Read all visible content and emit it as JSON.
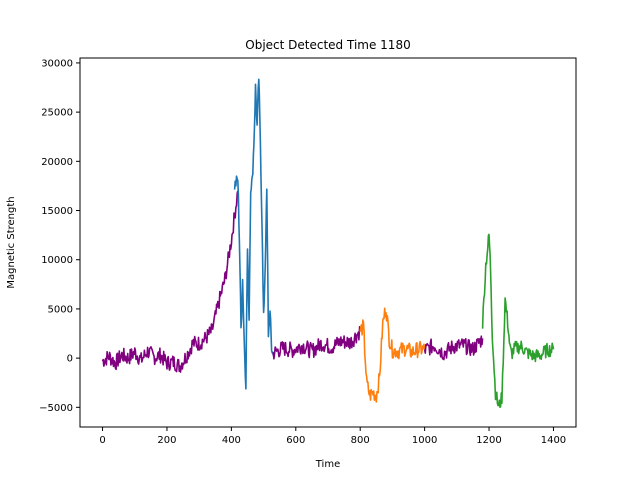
{
  "chart_data": {
    "type": "line",
    "title": "Object Detected Time 1180",
    "xlabel": "Time",
    "ylabel": "Magnetic Strength",
    "xlim": [
      -70,
      1470
    ],
    "ylim": [
      -7000,
      30500
    ],
    "xticks": [
      0,
      200,
      400,
      600,
      800,
      1000,
      1200,
      1400
    ],
    "yticks": [
      -5000,
      0,
      5000,
      10000,
      15000,
      20000,
      25000,
      30000
    ],
    "grid": false,
    "legend": "none",
    "series": [
      {
        "color": "#800080",
        "segment": 1,
        "x": [
          0,
          20,
          40,
          60,
          80,
          100,
          120,
          140,
          160,
          180,
          200,
          220,
          240,
          260,
          280,
          300,
          320,
          340,
          360,
          380,
          400,
          420
        ],
        "y": [
          -300,
          200,
          -500,
          300,
          0,
          600,
          -200,
          700,
          100,
          300,
          -500,
          -400,
          -800,
          200,
          1500,
          1500,
          2000,
          2800,
          5500,
          8000,
          12000,
          17000
        ]
      },
      {
        "color": "#1f77b4",
        "segment": 2,
        "x": [
          410,
          420,
          425,
          430,
          435,
          440,
          445,
          450,
          455,
          460,
          465,
          470,
          475,
          480,
          485,
          490,
          495,
          500,
          505,
          510,
          515,
          520,
          525,
          530
        ],
        "y": [
          17500,
          18200,
          12000,
          3000,
          8000,
          1500,
          -2500,
          11000,
          4000,
          17500,
          18000,
          22000,
          27500,
          23500,
          28500,
          22000,
          14000,
          4000,
          9500,
          17000,
          2500,
          4500,
          1000,
          300
        ],
        "shown_as": "peaks"
      },
      {
        "color": "#800080",
        "segment": 3,
        "x": [
          530,
          560,
          590,
          620,
          650,
          680,
          710,
          740,
          770,
          800
        ],
        "y": [
          500,
          1000,
          800,
          1300,
          700,
          1500,
          1100,
          1700,
          1600,
          2800
        ]
      },
      {
        "color": "#ff7f0e",
        "segment": 4,
        "x": [
          800,
          810,
          820,
          830,
          840,
          850,
          860,
          870,
          880,
          890,
          900,
          920,
          940,
          960,
          980,
          1000
        ],
        "y": [
          2800,
          3200,
          -2500,
          -3800,
          -3500,
          -3800,
          -2000,
          3500,
          5200,
          2000,
          800,
          700,
          1000,
          600,
          900,
          900
        ]
      },
      {
        "color": "#800080",
        "segment": 5,
        "x": [
          1000,
          1030,
          1060,
          1090,
          1120,
          1150,
          1180
        ],
        "y": [
          800,
          1300,
          500,
          1200,
          1300,
          900,
          2000
        ]
      },
      {
        "color": "#2ca02c",
        "segment": 6,
        "x": [
          1180,
          1190,
          1200,
          1205,
          1210,
          1220,
          1230,
          1240,
          1250,
          1260,
          1265,
          1270,
          1280,
          1300,
          1320,
          1340,
          1360,
          1380,
          1400
        ],
        "y": [
          3500,
          9500,
          12500,
          9000,
          2500,
          -3500,
          -5000,
          -4000,
          6000,
          3000,
          1000,
          400,
          1000,
          1200,
          500,
          200,
          300,
          800,
          900
        ],
        "shown_as": "peaks"
      }
    ]
  }
}
